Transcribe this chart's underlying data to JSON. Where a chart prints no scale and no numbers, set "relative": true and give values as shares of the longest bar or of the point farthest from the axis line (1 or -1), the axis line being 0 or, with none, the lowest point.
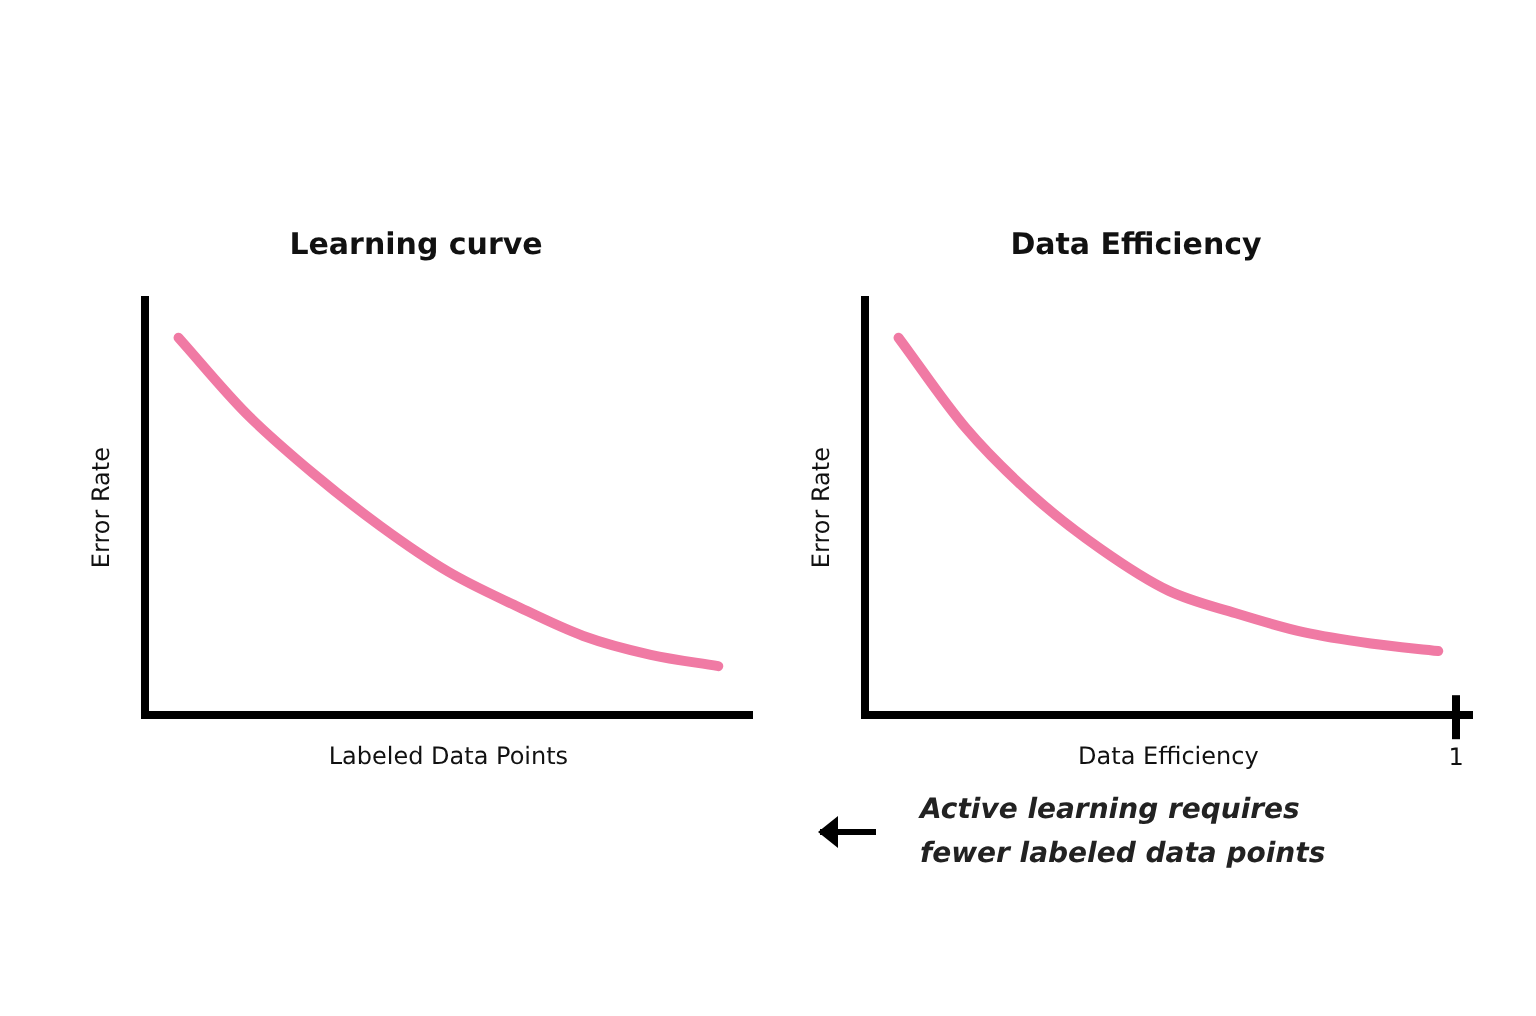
{
  "chart_data": [
    {
      "type": "line",
      "title": "Learning curve",
      "xlabel": "Labeled Data Points",
      "ylabel": "Error Rate",
      "relative": true,
      "categories": [
        null,
        null,
        null,
        null,
        null,
        null,
        null,
        null,
        null
      ],
      "series": [
        {
          "color": "#f07aa4",
          "values": [
            1,
            0.8,
            0.64,
            0.5,
            0.38,
            0.29,
            0.21,
            0.16,
            0.13
          ]
        }
      ],
      "grid": false,
      "legend": false,
      "tick_labels": false,
      "marker": "none",
      "line_style": "solid"
    },
    {
      "type": "line",
      "title": "Data Efficiency",
      "xlabel": "Data Efficiency",
      "ylabel": "Error Rate",
      "relative": true,
      "categories": [
        null,
        null,
        null,
        null,
        null,
        null,
        null,
        null,
        null
      ],
      "series": [
        {
          "color": "#f07aa4",
          "values": [
            1,
            0.76,
            0.58,
            0.44,
            0.33,
            0.27,
            0.22,
            0.19,
            0.17
          ]
        }
      ],
      "grid": false,
      "legend": false,
      "tick_labels": false,
      "marker": "none",
      "line_style": "solid",
      "annotations": [
        "1",
        "Active learning requires fewer labeled data points"
      ]
    }
  ]
}
